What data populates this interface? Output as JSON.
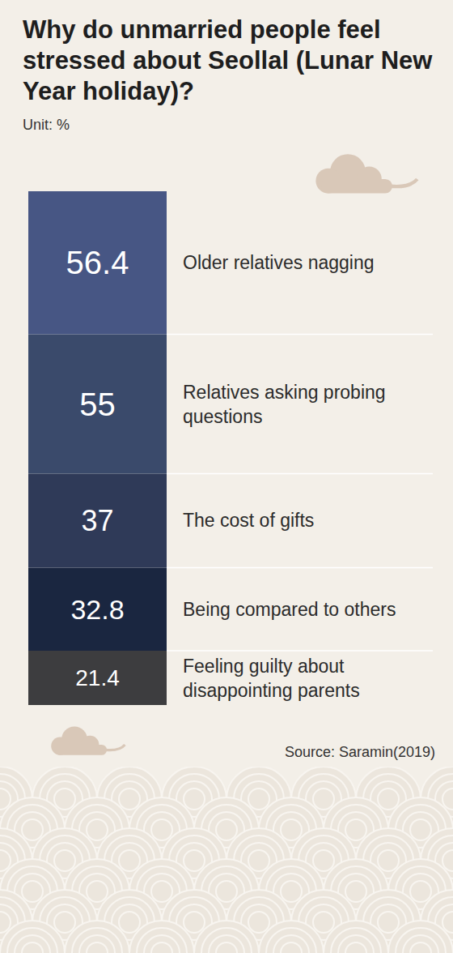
{
  "chart_data": {
    "type": "bar",
    "title": "Why do unmarried people feel stressed about Seollal (Lunar New Year holiday)?",
    "subtitle": "Unit: %",
    "source": "Source: Saramin(2019)",
    "stacked": true,
    "data_labels": true,
    "tick_labels": false,
    "categories": [
      null
    ],
    "ylim": [
      0,
      202.6
    ],
    "series": [
      {
        "name": "Older relatives nagging",
        "color": "#475684",
        "values": [
          56.4
        ]
      },
      {
        "name": "Relatives asking probing questions",
        "color": "#3a4a6b",
        "values": [
          55
        ]
      },
      {
        "name": "The cost of gifts",
        "color": "#2f3a58",
        "values": [
          37
        ]
      },
      {
        "name": "Being compared to others",
        "color": "#1a2640",
        "values": [
          32.8
        ]
      },
      {
        "name": "Feeling guilty about disappointing parents",
        "color": "#3d3d3f",
        "values": [
          21.4
        ]
      }
    ]
  }
}
